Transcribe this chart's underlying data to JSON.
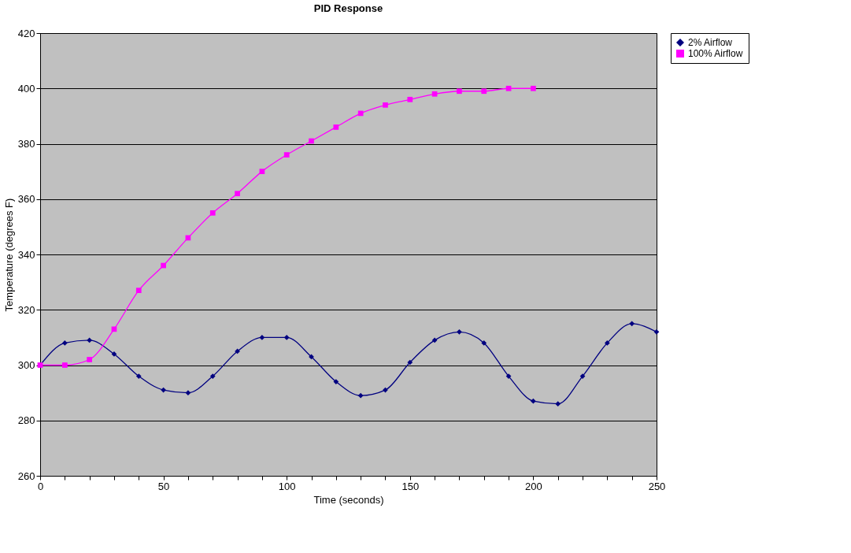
{
  "chart_data": {
    "type": "line",
    "title": "PID Response",
    "xlabel": "Time (seconds)",
    "ylabel": "Temperature (degrees F)",
    "series": [
      {
        "name": "2% Airflow",
        "color": "#000080",
        "marker": "diamond",
        "x": [
          0,
          10,
          20,
          30,
          40,
          50,
          60,
          70,
          80,
          90,
          100,
          110,
          120,
          130,
          140,
          150,
          160,
          170,
          180,
          190,
          200,
          210,
          220,
          230,
          240,
          250
        ],
        "values": [
          300,
          308,
          309,
          304,
          296,
          291,
          290,
          296,
          305,
          310,
          310,
          303,
          294,
          289,
          291,
          301,
          309,
          312,
          308,
          296,
          287,
          286,
          296,
          308,
          315,
          312
        ]
      },
      {
        "name": "100% Airflow",
        "color": "#ff00ff",
        "marker": "square",
        "x": [
          0,
          10,
          20,
          30,
          40,
          50,
          60,
          70,
          80,
          90,
          100,
          110,
          120,
          130,
          140,
          150,
          160,
          170,
          180,
          190,
          200
        ],
        "values": [
          300,
          300,
          302,
          313,
          327,
          336,
          346,
          355,
          362,
          370,
          376,
          381,
          386,
          391,
          394,
          396,
          398,
          399,
          399,
          400,
          400
        ]
      }
    ],
    "xlim": [
      0,
      250
    ],
    "xticks": [
      0,
      {
        "value": 10,
        "label": null
      },
      {
        "value": 20,
        "label": null
      },
      {
        "value": 30,
        "label": null
      },
      {
        "value": 40,
        "label": null
      },
      50,
      {
        "value": 60,
        "label": null
      },
      {
        "value": 70,
        "label": null
      },
      {
        "value": 80,
        "label": null
      },
      {
        "value": 90,
        "label": null
      },
      100,
      {
        "value": 110,
        "label": null
      },
      {
        "value": 120,
        "label": null
      },
      {
        "value": 130,
        "label": null
      },
      {
        "value": 140,
        "label": null
      },
      150,
      {
        "value": 160,
        "label": null
      },
      {
        "value": 170,
        "label": null
      },
      {
        "value": 180,
        "label": null
      },
      {
        "value": 190,
        "label": null
      },
      200,
      {
        "value": 210,
        "label": null
      },
      {
        "value": 220,
        "label": null
      },
      {
        "value": 230,
        "label": null
      },
      {
        "value": 240,
        "label": null
      },
      250
    ],
    "ylim": [
      260,
      420
    ],
    "yticks": [
      260,
      280,
      300,
      320,
      340,
      360,
      380,
      400,
      420
    ],
    "grid": "y",
    "legend": "right",
    "line_style": "solid"
  }
}
